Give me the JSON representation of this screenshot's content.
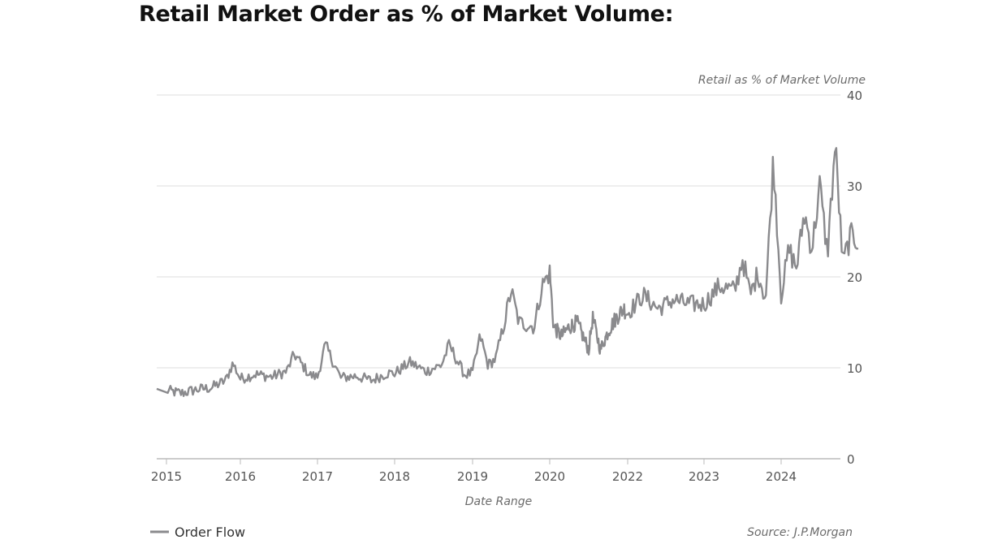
{
  "page": {
    "title": "Retail Market Order as % of Market Volume:"
  },
  "chart_data": {
    "type": "line",
    "title": "Retail Market Order as % of Market Volume:",
    "xlabel": "Date Range",
    "ylabel": "Retail as % of Market Volume",
    "y_axis_side": "right",
    "ylim": [
      0,
      40
    ],
    "y_ticks": [
      0,
      10,
      20,
      30,
      40
    ],
    "x_ticks": [
      "2015",
      "2016",
      "2017",
      "2018",
      "2019",
      "2020",
      "2022",
      "2023",
      "2024"
    ],
    "grid": "horizontal",
    "legend_position": "bottom-left",
    "source": "Source: J.P.Morgan",
    "colors": {
      "series": "#8a8a8d",
      "grid": "#dddddd"
    },
    "series": [
      {
        "name": "Order Flow",
        "points": [
          [
            "2015",
            7.5
          ],
          [
            "2015.2",
            7.2
          ],
          [
            "2015.4",
            7.6
          ],
          [
            "2015.6",
            7.8
          ],
          [
            "2015.8",
            8.6
          ],
          [
            "2015.9",
            10.5
          ],
          [
            "2016",
            8.8
          ],
          [
            "2016.2",
            9.3
          ],
          [
            "2016.4",
            9.0
          ],
          [
            "2016.6",
            9.6
          ],
          [
            "2016.7",
            11.5
          ],
          [
            "2016.9",
            9.2
          ],
          [
            "2017",
            9.0
          ],
          [
            "2017.1",
            12.5
          ],
          [
            "2017.3",
            8.9
          ],
          [
            "2017.5",
            9.1
          ],
          [
            "2017.7",
            8.6
          ],
          [
            "2017.9",
            9.4
          ],
          [
            "2018",
            9.4
          ],
          [
            "2018.2",
            10.6
          ],
          [
            "2018.4",
            9.6
          ],
          [
            "2018.6",
            10.3
          ],
          [
            "2018.7",
            12.5
          ],
          [
            "2018.9",
            9.2
          ],
          [
            "2019",
            9.5
          ],
          [
            "2019.1",
            13.5
          ],
          [
            "2019.2",
            10.3
          ],
          [
            "2019.3",
            11.0
          ],
          [
            "2019.4",
            14.5
          ],
          [
            "2019.5",
            18.5
          ],
          [
            "2019.6",
            15.0
          ],
          [
            "2019.8",
            14.5
          ],
          [
            "2019.9",
            19.0
          ],
          [
            "2020",
            20.5
          ],
          [
            "2020.1",
            14.5
          ],
          [
            "2020.3",
            13.5
          ],
          [
            "2020.5",
            14.5
          ],
          [
            "2020.7",
            15.0
          ],
          [
            "2020.9",
            13.0
          ],
          [
            "2021",
            12.0
          ],
          [
            "2021.1",
            15.5
          ],
          [
            "2021.3",
            12.0
          ],
          [
            "2021.5",
            14.0
          ],
          [
            "2021.7",
            15.5
          ],
          [
            "2021.9",
            16.5
          ],
          [
            "2022",
            16.0
          ],
          [
            "2022.2",
            18.0
          ],
          [
            "2022.4",
            16.5
          ],
          [
            "2022.6",
            17.5
          ],
          [
            "2022.8",
            17.0
          ],
          [
            "2023",
            17.0
          ],
          [
            "2023.2",
            19.0
          ],
          [
            "2023.4",
            18.5
          ],
          [
            "2023.5",
            22.0
          ],
          [
            "2023.6",
            18.0
          ],
          [
            "2023.7",
            20.5
          ],
          [
            "2023.8",
            17.5
          ],
          [
            "2023.9",
            33.0
          ],
          [
            "2024",
            18.0
          ],
          [
            "2024.1",
            23.0
          ],
          [
            "2024.2",
            21.0
          ],
          [
            "2024.3",
            27.0
          ],
          [
            "2024.4",
            23.0
          ],
          [
            "2024.5",
            30.0
          ],
          [
            "2024.6",
            22.5
          ],
          [
            "2024.7",
            34.5
          ],
          [
            "2024.8",
            21.5
          ],
          [
            "2024.9",
            24.5
          ],
          [
            "2025",
            24.0
          ]
        ]
      }
    ]
  }
}
